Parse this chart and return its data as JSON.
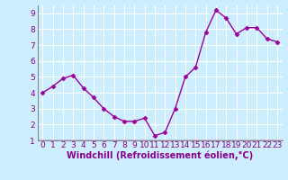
{
  "x": [
    0,
    1,
    2,
    3,
    4,
    5,
    6,
    7,
    8,
    9,
    10,
    11,
    12,
    13,
    14,
    15,
    16,
    17,
    18,
    19,
    20,
    21,
    22,
    23
  ],
  "y": [
    4.0,
    4.4,
    4.9,
    5.1,
    4.3,
    3.7,
    3.0,
    2.5,
    2.2,
    2.2,
    2.4,
    1.3,
    1.5,
    3.0,
    5.0,
    5.6,
    7.8,
    9.2,
    8.7,
    7.7,
    8.1,
    8.1,
    7.4,
    7.2
  ],
  "line_color": "#990099",
  "marker": "D",
  "marker_size": 2.5,
  "linewidth": 1.0,
  "xlabel": "Windchill (Refroidissement éolien,°C)",
  "xlim": [
    -0.5,
    23.5
  ],
  "ylim": [
    1,
    9.5
  ],
  "yticks": [
    1,
    2,
    3,
    4,
    5,
    6,
    7,
    8,
    9
  ],
  "xticks": [
    0,
    1,
    2,
    3,
    4,
    5,
    6,
    7,
    8,
    9,
    10,
    11,
    12,
    13,
    14,
    15,
    16,
    17,
    18,
    19,
    20,
    21,
    22,
    23
  ],
  "xtick_labels": [
    "0",
    "1",
    "2",
    "3",
    "4",
    "5",
    "6",
    "7",
    "8",
    "9",
    "10",
    "11",
    "12",
    "13",
    "14",
    "15",
    "16",
    "17",
    "18",
    "19",
    "20",
    "21",
    "22",
    "23"
  ],
  "bg_color": "#cceeff",
  "grid_color": "#ffffff",
  "tick_color": "#880088",
  "label_color": "#880088",
  "axis_line_color": "#888888",
  "xlabel_fontsize": 7,
  "tick_fontsize": 6.5
}
